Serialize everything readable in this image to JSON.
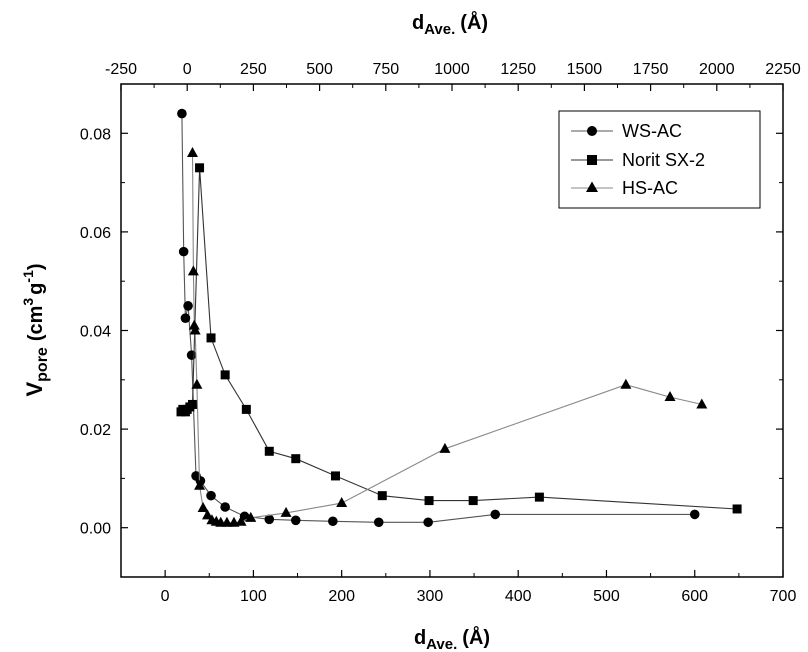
{
  "chart_data": {
    "type": "line",
    "xlabel": {
      "main": "d",
      "sub": "Ave.",
      "unit": "(Å)"
    },
    "x2label": {
      "main": "d",
      "sub": "Ave.",
      "unit": "(Å)"
    },
    "ylabel": {
      "main": "V",
      "sub": "pore",
      "unit_open": "(cm",
      "sup1": "3",
      "mid": "g",
      "sup2": "-1",
      "unit_close": ")"
    },
    "xlim": [
      -50,
      700
    ],
    "ylim": [
      -0.01,
      0.09
    ],
    "x2lim": [
      -250,
      2250
    ],
    "x_ticks": [
      0,
      100,
      200,
      300,
      400,
      500,
      600,
      700
    ],
    "x_tick_labels": [
      "0",
      "100",
      "200",
      "300",
      "400",
      "500",
      "600",
      "700"
    ],
    "y_ticks": [
      0.0,
      0.02,
      0.04,
      0.06,
      0.08
    ],
    "y_tick_labels": [
      "0.00",
      "0.02",
      "0.04",
      "0.06",
      "0.08"
    ],
    "x2_ticks": [
      -250,
      0,
      250,
      500,
      750,
      1000,
      1250,
      1500,
      1750,
      2000,
      2250
    ],
    "x2_tick_labels": [
      "-250",
      "0",
      "250",
      "500",
      "750",
      "1000",
      "1250",
      "1500",
      "1750",
      "2000",
      "2250"
    ],
    "grid": false,
    "legend_position": "top-right",
    "series": [
      {
        "name": "WS-AC",
        "marker": "circle",
        "line_color": "#555555",
        "x": [
          19,
          21,
          23,
          26,
          30,
          35,
          40,
          52,
          68,
          90,
          118,
          148,
          190,
          242,
          298,
          374,
          600
        ],
        "y": [
          0.084,
          0.056,
          0.0425,
          0.045,
          0.035,
          0.0105,
          0.0095,
          0.0065,
          0.0042,
          0.0023,
          0.0017,
          0.0015,
          0.0013,
          0.0011,
          0.0011,
          0.0027,
          0.0027
        ]
      },
      {
        "name": "Norit SX-2",
        "marker": "square",
        "line_color": "#333333",
        "x": [
          18,
          20,
          23,
          25,
          28,
          31,
          39,
          52,
          68,
          92,
          118,
          148,
          193,
          246,
          299,
          349,
          424,
          648
        ],
        "y": [
          0.0235,
          0.024,
          0.0235,
          0.024,
          0.0245,
          0.025,
          0.073,
          0.0385,
          0.031,
          0.024,
          0.0155,
          0.014,
          0.0105,
          0.0065,
          0.0055,
          0.0055,
          0.0062,
          0.0038
        ]
      },
      {
        "name": "HS-AC",
        "marker": "triangle",
        "line_color": "#888888",
        "x": [
          31,
          32,
          33,
          34,
          36,
          39,
          43,
          48,
          53,
          58,
          63,
          70,
          78,
          86,
          97,
          137,
          200,
          317,
          522,
          572,
          608
        ],
        "y": [
          0.076,
          0.052,
          0.041,
          0.04,
          0.029,
          0.0085,
          0.004,
          0.0025,
          0.0015,
          0.0012,
          0.001,
          0.001,
          0.001,
          0.0012,
          0.002,
          0.003,
          0.005,
          0.016,
          0.029,
          0.0265,
          0.025
        ]
      }
    ]
  }
}
